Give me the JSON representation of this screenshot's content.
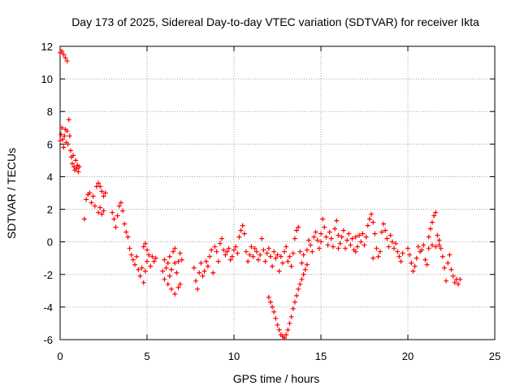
{
  "chart_data": {
    "type": "scatter",
    "title": "Day 173 of 2025, Sidereal Day-to-day VTEC variation (SDTVAR) for receiver Ikta",
    "xlabel": "GPS time / hours",
    "ylabel": "SDTVAR / TECUs",
    "xlim": [
      0,
      25
    ],
    "ylim": [
      -6,
      12
    ],
    "x_ticks": [
      "0",
      "5",
      "10",
      "15",
      "20",
      "25"
    ],
    "y_ticks": [
      "-6",
      "-4",
      "-2",
      "0",
      "2",
      "4",
      "6",
      "8",
      "10",
      "12"
    ],
    "grid": true,
    "marker": "plus",
    "color": "#ff0000",
    "series": [
      {
        "name": "SDTVAR",
        "points": [
          [
            0.0,
            11.6
          ],
          [
            0.1,
            11.7
          ],
          [
            0.2,
            11.5
          ],
          [
            0.3,
            11.3
          ],
          [
            0.4,
            11.1
          ],
          [
            0.0,
            6.2
          ],
          [
            0.05,
            6.6
          ],
          [
            0.1,
            7.0
          ],
          [
            0.15,
            6.3
          ],
          [
            0.2,
            5.8
          ],
          [
            0.25,
            6.5
          ],
          [
            0.3,
            6.9
          ],
          [
            0.35,
            6.1
          ],
          [
            0.4,
            6.8
          ],
          [
            0.45,
            6.0
          ],
          [
            0.5,
            7.5
          ],
          [
            0.55,
            6.5
          ],
          [
            0.6,
            5.6
          ],
          [
            0.65,
            5.2
          ],
          [
            0.7,
            4.8
          ],
          [
            0.75,
            5.3
          ],
          [
            0.8,
            4.6
          ],
          [
            0.85,
            4.4
          ],
          [
            0.9,
            5.0
          ],
          [
            0.95,
            4.5
          ],
          [
            1.0,
            4.7
          ],
          [
            1.05,
            4.3
          ],
          [
            1.1,
            4.6
          ],
          [
            1.4,
            1.4
          ],
          [
            1.5,
            2.6
          ],
          [
            1.6,
            2.9
          ],
          [
            1.7,
            3.0
          ],
          [
            1.8,
            2.4
          ],
          [
            1.9,
            2.8
          ],
          [
            2.0,
            2.2
          ],
          [
            2.1,
            3.4
          ],
          [
            2.2,
            3.6
          ],
          [
            2.3,
            3.4
          ],
          [
            2.4,
            3.1
          ],
          [
            2.5,
            2.8
          ],
          [
            2.6,
            3.0
          ],
          [
            2.2,
            1.8
          ],
          [
            2.3,
            2.1
          ],
          [
            2.4,
            1.7
          ],
          [
            2.5,
            1.9
          ],
          [
            3.0,
            1.8
          ],
          [
            3.1,
            1.4
          ],
          [
            3.2,
            0.9
          ],
          [
            3.3,
            1.6
          ],
          [
            3.4,
            2.2
          ],
          [
            3.5,
            2.4
          ],
          [
            3.6,
            1.9
          ],
          [
            3.7,
            1.1
          ],
          [
            3.8,
            0.6
          ],
          [
            3.9,
            0.3
          ],
          [
            4.0,
            -0.4
          ],
          [
            4.1,
            -0.8
          ],
          [
            4.2,
            -1.1
          ],
          [
            4.3,
            -1.4
          ],
          [
            4.4,
            -0.9
          ],
          [
            4.5,
            -1.7
          ],
          [
            4.6,
            -2.1
          ],
          [
            4.7,
            -1.6
          ],
          [
            4.8,
            -2.5
          ],
          [
            4.9,
            -1.8
          ],
          [
            5.0,
            -1.2
          ],
          [
            5.1,
            -0.8
          ],
          [
            5.2,
            -1.5
          ],
          [
            5.3,
            -0.9
          ],
          [
            5.4,
            -1.2
          ],
          [
            5.5,
            -1.0
          ],
          [
            4.8,
            -0.3
          ],
          [
            4.9,
            -0.1
          ],
          [
            5.0,
            -0.5
          ],
          [
            5.9,
            -1.8
          ],
          [
            6.0,
            -2.3
          ],
          [
            6.1,
            -1.6
          ],
          [
            6.2,
            -1.3
          ],
          [
            6.3,
            -2.1
          ],
          [
            6.4,
            -1.7
          ],
          [
            6.5,
            -0.6
          ],
          [
            6.6,
            -0.4
          ],
          [
            6.7,
            -1.9
          ],
          [
            6.8,
            -1.2
          ],
          [
            6.9,
            -2.6
          ],
          [
            7.0,
            -1.1
          ],
          [
            6.2,
            -2.6
          ],
          [
            6.4,
            -2.9
          ],
          [
            6.6,
            -3.2
          ],
          [
            6.8,
            -2.8
          ],
          [
            6.0,
            -1.1
          ],
          [
            6.3,
            -0.9
          ],
          [
            6.6,
            -1.3
          ],
          [
            6.9,
            -0.7
          ],
          [
            7.7,
            -1.6
          ],
          [
            7.8,
            -2.4
          ],
          [
            7.9,
            -2.9
          ],
          [
            8.0,
            -1.9
          ],
          [
            8.1,
            -1.3
          ],
          [
            8.2,
            -2.1
          ],
          [
            8.3,
            -1.8
          ],
          [
            8.4,
            -1.2
          ],
          [
            8.5,
            -1.5
          ],
          [
            8.6,
            -0.9
          ],
          [
            8.7,
            -0.5
          ],
          [
            8.8,
            -1.9
          ],
          [
            8.9,
            -0.3
          ],
          [
            9.0,
            -0.6
          ],
          [
            9.1,
            -1.2
          ],
          [
            9.2,
            -0.1
          ],
          [
            9.3,
            0.2
          ],
          [
            9.4,
            -0.5
          ],
          [
            9.5,
            -0.8
          ],
          [
            9.6,
            -0.6
          ],
          [
            9.7,
            -0.4
          ],
          [
            9.8,
            -1.1
          ],
          [
            9.9,
            -0.9
          ],
          [
            10.0,
            -0.5
          ],
          [
            10.1,
            -0.3
          ],
          [
            10.2,
            -0.7
          ],
          [
            10.3,
            0.3
          ],
          [
            10.4,
            0.7
          ],
          [
            10.5,
            1.0
          ],
          [
            10.6,
            0.5
          ],
          [
            10.7,
            -0.6
          ],
          [
            10.8,
            -1.2
          ],
          [
            10.9,
            -0.8
          ],
          [
            11.0,
            -0.3
          ],
          [
            11.1,
            -0.9
          ],
          [
            11.2,
            -0.4
          ],
          [
            11.3,
            -0.6
          ],
          [
            11.4,
            -1.1
          ],
          [
            11.5,
            -0.8
          ],
          [
            11.6,
            0.2
          ],
          [
            11.7,
            -0.5
          ],
          [
            11.8,
            -1.2
          ],
          [
            11.9,
            -0.7
          ],
          [
            12.0,
            -0.4
          ],
          [
            12.1,
            -0.9
          ],
          [
            12.2,
            -1.5
          ],
          [
            12.3,
            -0.6
          ],
          [
            12.4,
            -1.0
          ],
          [
            12.5,
            -0.8
          ],
          [
            12.6,
            -1.8
          ],
          [
            12.7,
            -0.9
          ],
          [
            12.8,
            -1.3
          ],
          [
            12.9,
            -0.6
          ],
          [
            13.0,
            -0.3
          ],
          [
            13.1,
            -1.2
          ],
          [
            13.2,
            -0.9
          ],
          [
            13.3,
            -1.5
          ],
          [
            13.4,
            -0.7
          ],
          [
            13.5,
            0.2
          ],
          [
            13.6,
            0.7
          ],
          [
            13.7,
            0.9
          ],
          [
            13.8,
            -0.6
          ],
          [
            13.9,
            -1.3
          ],
          [
            14.0,
            -0.8
          ],
          [
            12.0,
            -3.4
          ],
          [
            12.1,
            -3.7
          ],
          [
            12.2,
            -4.0
          ],
          [
            12.3,
            -4.3
          ],
          [
            12.4,
            -4.7
          ],
          [
            12.5,
            -5.1
          ],
          [
            12.6,
            -5.4
          ],
          [
            12.7,
            -5.7
          ],
          [
            12.8,
            -5.8
          ],
          [
            12.9,
            -5.9
          ],
          [
            13.0,
            -5.7
          ],
          [
            13.1,
            -5.4
          ],
          [
            13.2,
            -5.0
          ],
          [
            13.3,
            -4.6
          ],
          [
            13.4,
            -4.1
          ],
          [
            13.5,
            -3.7
          ],
          [
            13.6,
            -3.3
          ],
          [
            13.7,
            -2.9
          ],
          [
            13.8,
            -2.6
          ],
          [
            13.9,
            -2.3
          ],
          [
            14.0,
            -2.0
          ],
          [
            14.1,
            -1.7
          ],
          [
            14.2,
            -1.4
          ],
          [
            14.2,
            -0.5
          ],
          [
            14.3,
            0.1
          ],
          [
            14.4,
            -0.2
          ],
          [
            14.5,
            -0.6
          ],
          [
            14.6,
            0.3
          ],
          [
            14.7,
            0.6
          ],
          [
            14.8,
            0.1
          ],
          [
            14.9,
            -0.4
          ],
          [
            15.0,
            0.5
          ],
          [
            15.1,
            1.4
          ],
          [
            15.2,
            0.9
          ],
          [
            15.3,
            0.3
          ],
          [
            15.4,
            -0.2
          ],
          [
            15.5,
            0.6
          ],
          [
            15.6,
            0.2
          ],
          [
            15.7,
            -0.3
          ],
          [
            15.8,
            0.8
          ],
          [
            15.9,
            1.3
          ],
          [
            16.0,
            0.4
          ],
          [
            16.1,
            -0.1
          ],
          [
            16.2,
            0.3
          ],
          [
            16.3,
            0.7
          ],
          [
            16.4,
            -0.4
          ],
          [
            16.5,
            0.1
          ],
          [
            16.6,
            0.5
          ],
          [
            16.7,
            -0.2
          ],
          [
            16.8,
            0.2
          ],
          [
            16.9,
            -0.5
          ],
          [
            17.0,
            0.3
          ],
          [
            17.1,
            -0.3
          ],
          [
            17.2,
            0.4
          ],
          [
            17.3,
            0.0
          ],
          [
            17.4,
            0.5
          ],
          [
            17.5,
            -0.2
          ],
          [
            17.6,
            0.3
          ],
          [
            17.7,
            1.0
          ],
          [
            17.8,
            1.4
          ],
          [
            17.9,
            1.7
          ],
          [
            18.0,
            1.2
          ],
          [
            18.1,
            0.5
          ],
          [
            18.2,
            -0.4
          ],
          [
            18.3,
            -0.9
          ],
          [
            18.4,
            -0.6
          ],
          [
            18.5,
            0.6
          ],
          [
            18.6,
            1.1
          ],
          [
            18.7,
            0.7
          ],
          [
            18.8,
            0.2
          ],
          [
            18.9,
            -0.3
          ],
          [
            19.0,
            0.4
          ],
          [
            19.1,
            0.0
          ],
          [
            19.2,
            -0.4
          ],
          [
            19.3,
            -0.1
          ],
          [
            19.4,
            -0.6
          ],
          [
            19.5,
            -0.9
          ],
          [
            19.6,
            -1.2
          ],
          [
            19.7,
            -0.7
          ],
          [
            15.0,
            0.0
          ],
          [
            16.0,
            -0.4
          ],
          [
            17.0,
            -0.6
          ],
          [
            18.0,
            -1.0
          ],
          [
            20.0,
            -0.4
          ],
          [
            20.1,
            -0.8
          ],
          [
            20.2,
            -1.3
          ],
          [
            20.3,
            -1.8
          ],
          [
            20.4,
            -1.5
          ],
          [
            20.5,
            -1.0
          ],
          [
            20.6,
            -0.3
          ],
          [
            20.7,
            -0.6
          ],
          [
            20.8,
            -0.5
          ],
          [
            20.9,
            -0.2
          ],
          [
            21.0,
            -1.1
          ],
          [
            21.1,
            -1.4
          ],
          [
            21.2,
            0.3
          ],
          [
            21.3,
            0.8
          ],
          [
            21.4,
            1.2
          ],
          [
            21.5,
            1.6
          ],
          [
            21.6,
            1.8
          ],
          [
            21.7,
            0.4
          ],
          [
            21.8,
            -0.2
          ],
          [
            21.9,
            -0.4
          ],
          [
            22.0,
            -0.9
          ],
          [
            22.1,
            -1.6
          ],
          [
            22.2,
            -2.4
          ],
          [
            22.3,
            -1.3
          ],
          [
            22.4,
            -0.8
          ],
          [
            22.5,
            -1.7
          ],
          [
            22.6,
            -2.1
          ],
          [
            22.7,
            -2.5
          ],
          [
            22.8,
            -2.3
          ],
          [
            22.9,
            -2.6
          ],
          [
            23.0,
            -2.3
          ],
          [
            21.2,
            -0.4
          ],
          [
            21.4,
            -0.2
          ],
          [
            21.6,
            -0.3
          ],
          [
            21.8,
            0.1
          ]
        ]
      }
    ]
  }
}
